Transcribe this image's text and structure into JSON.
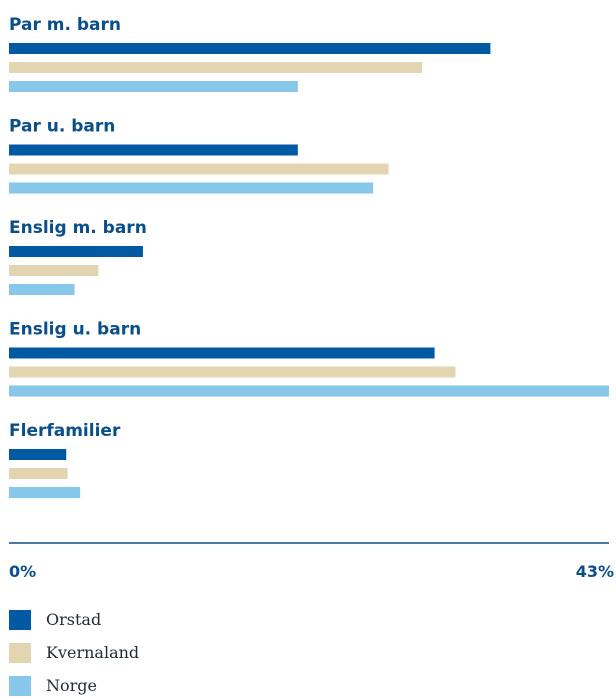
{
  "chart_data": {
    "type": "bar",
    "orientation": "horizontal",
    "categories": [
      "Par m. barn",
      "Par u. barn",
      "Enslig m. barn",
      "Enslig u. barn",
      "Flerfamilier"
    ],
    "series": [
      {
        "name": "Orstad",
        "color": "#005aa3",
        "values": [
          34.5,
          20.7,
          9.6,
          30.5,
          4.1
        ]
      },
      {
        "name": "Kvernaland",
        "color": "#e3d5b2",
        "values": [
          29.6,
          27.2,
          6.4,
          32.0,
          4.2
        ]
      },
      {
        "name": "Norge",
        "color": "#86c7ea",
        "values": [
          20.7,
          26.1,
          4.7,
          43.0,
          5.1
        ]
      }
    ],
    "xlim": [
      0,
      43
    ],
    "tick_labels": [
      "0%",
      "43%"
    ],
    "legend_position": "bottom",
    "grid": false,
    "axis_color": "#0b4f8a"
  }
}
